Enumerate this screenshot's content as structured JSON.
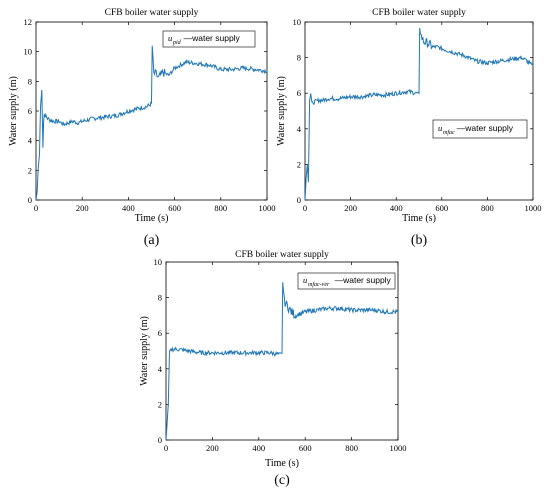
{
  "chart_data": [
    {
      "type": "line",
      "panel_label": "(a)",
      "title": "CFB boiler water supply",
      "xlabel": "Time  (s)",
      "ylabel": "Water supply  (m)",
      "xlim": [
        0,
        1000
      ],
      "ylim": [
        0,
        12
      ],
      "xticks": [
        0,
        200,
        400,
        600,
        800,
        1000
      ],
      "yticks": [
        0,
        2,
        4,
        6,
        8,
        10,
        12
      ],
      "grid": false,
      "legend_position": "top-right",
      "color": "#1f77b4",
      "series": [
        {
          "legend_symbol": "u",
          "legend_subscript": "pid",
          "legend_text": "—water supply",
          "x": [
            0,
            5,
            10,
            15,
            20,
            25,
            30,
            33,
            36,
            40,
            45,
            50,
            60,
            80,
            100,
            120,
            140,
            160,
            180,
            200,
            250,
            300,
            350,
            400,
            450,
            480,
            500,
            503,
            506,
            510,
            520,
            530,
            550,
            575,
            600,
            625,
            650,
            700,
            750,
            800,
            850,
            900,
            950,
            1000
          ],
          "y": [
            0,
            0.6,
            2.2,
            3.1,
            6.4,
            7.4,
            3.6,
            5.3,
            5.8,
            5.7,
            5.6,
            5.5,
            5.4,
            5.3,
            5.3,
            5.1,
            5.2,
            5.3,
            5.2,
            5.3,
            5.5,
            5.6,
            5.7,
            6.0,
            6.2,
            6.3,
            6.5,
            10.4,
            9.5,
            8.5,
            8.5,
            8.2,
            8.6,
            8.4,
            8.9,
            9.1,
            9.3,
            9.2,
            9.1,
            8.8,
            8.8,
            8.9,
            8.8,
            8.7
          ]
        }
      ]
    },
    {
      "type": "line",
      "panel_label": "(b)",
      "title": "CFB boiler water supply",
      "xlabel": "Time  (s)",
      "ylabel": "Water supply  (m)",
      "xlim": [
        0,
        1000
      ],
      "ylim": [
        0,
        10
      ],
      "xticks": [
        0,
        200,
        400,
        600,
        800,
        1000
      ],
      "yticks": [
        0,
        2,
        4,
        6,
        8,
        10
      ],
      "grid": false,
      "legend_position": "center-right",
      "color": "#1f77b4",
      "series": [
        {
          "legend_symbol": "u",
          "legend_subscript": "mfac",
          "legend_text": "—water supply",
          "x": [
            0,
            5,
            10,
            15,
            20,
            25,
            30,
            40,
            60,
            80,
            100,
            150,
            200,
            250,
            300,
            350,
            400,
            450,
            490,
            500,
            503,
            506,
            510,
            520,
            540,
            560,
            580,
            600,
            650,
            700,
            750,
            800,
            850,
            900,
            950,
            975,
            1000
          ],
          "y": [
            0,
            1.2,
            2.0,
            1.0,
            5.6,
            6.0,
            5.4,
            5.5,
            5.6,
            5.6,
            5.7,
            5.7,
            5.8,
            5.8,
            5.9,
            5.9,
            6.0,
            6.1,
            6.0,
            5.9,
            9.8,
            9.5,
            9.2,
            8.9,
            8.8,
            8.6,
            8.6,
            8.5,
            8.3,
            8.1,
            7.8,
            7.7,
            7.8,
            7.9,
            8.0,
            7.8,
            7.5
          ]
        }
      ]
    },
    {
      "type": "line",
      "panel_label": "(c)",
      "title": "CFB boiler water supply",
      "xlabel": "Time  (s)",
      "ylabel": "Water supply  (m)",
      "xlim": [
        0,
        1000
      ],
      "ylim": [
        0,
        10
      ],
      "xticks": [
        0,
        200,
        400,
        600,
        800,
        1000
      ],
      "yticks": [
        0,
        2,
        4,
        6,
        8,
        10
      ],
      "grid": false,
      "legend_position": "top-right",
      "color": "#1f77b4",
      "series": [
        {
          "legend_symbol": "u",
          "legend_subscript": "mfac-ver",
          "legend_text": "—water supply",
          "x": [
            0,
            5,
            10,
            15,
            20,
            30,
            50,
            100,
            150,
            200,
            250,
            300,
            350,
            400,
            450,
            490,
            500,
            503,
            506,
            510,
            520,
            540,
            560,
            600,
            650,
            700,
            750,
            800,
            850,
            900,
            950,
            1000
          ],
          "y": [
            0,
            1.0,
            2.0,
            5.0,
            5.1,
            5.1,
            5.1,
            5.0,
            4.9,
            4.9,
            4.9,
            4.9,
            4.9,
            4.9,
            4.9,
            4.8,
            4.8,
            9.0,
            8.4,
            7.8,
            7.6,
            7.2,
            7.0,
            7.2,
            7.3,
            7.4,
            7.4,
            7.3,
            7.3,
            7.3,
            7.2,
            7.2
          ]
        }
      ]
    }
  ]
}
